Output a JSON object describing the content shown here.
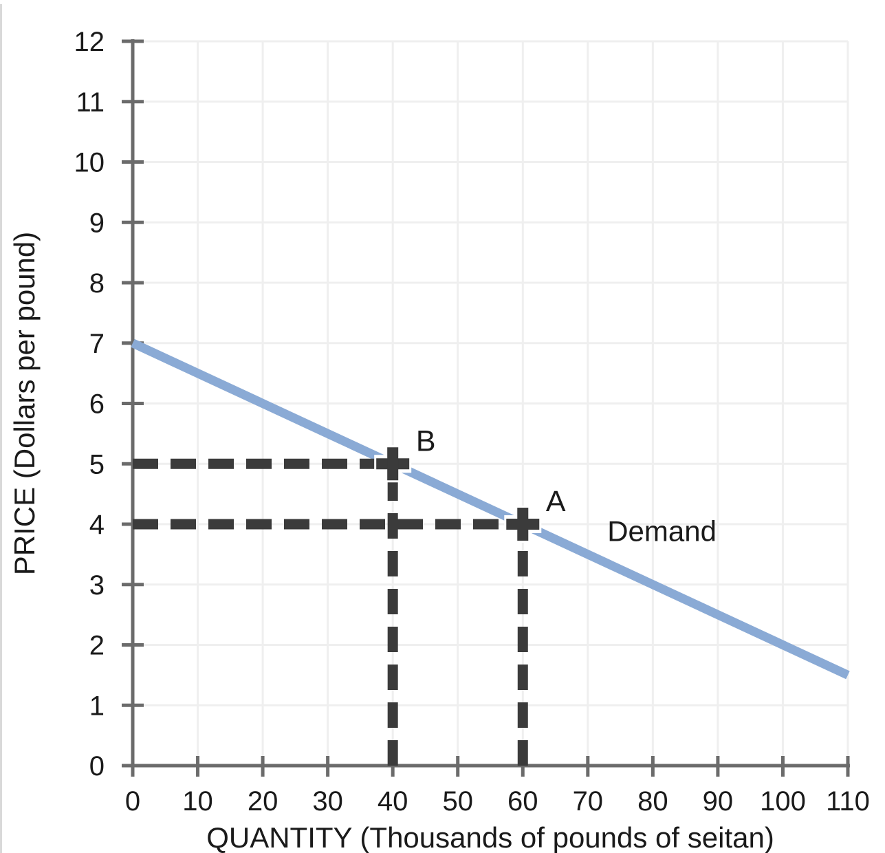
{
  "figure": {
    "left_border_color": "#D9D9D9",
    "background_color": "#FFFFFF"
  },
  "chart_data": {
    "type": "line",
    "title": "",
    "xlabel": "QUANTITY (Thousands of pounds of seitan)",
    "ylabel": "PRICE (Dollars per pound)",
    "xlim": [
      0,
      110
    ],
    "ylim": [
      0,
      12
    ],
    "x_ticks": [
      0,
      10,
      20,
      30,
      40,
      50,
      60,
      70,
      80,
      90,
      100,
      110
    ],
    "y_ticks": [
      0,
      1,
      2,
      3,
      4,
      5,
      6,
      7,
      8,
      9,
      10,
      11,
      12
    ],
    "grid": true,
    "legend_position": "inline-label",
    "series": [
      {
        "name": "Demand",
        "type": "line",
        "color": "#8AAAD5",
        "points": [
          [
            0,
            7
          ],
          [
            110,
            1.5
          ]
        ],
        "label": {
          "text": "Demand",
          "x": 81.4,
          "y": 3.89
        }
      }
    ],
    "annotated_points": [
      {
        "label": "B",
        "x": 40,
        "y": 5
      },
      {
        "label": "A",
        "x": 60,
        "y": 4
      }
    ],
    "guide_lines": [
      {
        "orientation": "horizontal",
        "price": 5,
        "from_quantity": 0,
        "to_quantity": 40
      },
      {
        "orientation": "vertical",
        "quantity": 40,
        "from_price": 0,
        "to_price": 5
      },
      {
        "orientation": "horizontal",
        "price": 4,
        "from_quantity": 0,
        "to_quantity": 60
      },
      {
        "orientation": "vertical",
        "quantity": 60,
        "from_price": 0,
        "to_price": 4
      }
    ],
    "colors": {
      "demand_line": "#8AAAD5",
      "guide": "#3B3B3B",
      "marker": "#3B3B3B",
      "marker_halo": "#FFFFFF",
      "axis": "#6B6B6B",
      "grid": "#EFEFEF",
      "text": "#1A1A1A"
    }
  }
}
